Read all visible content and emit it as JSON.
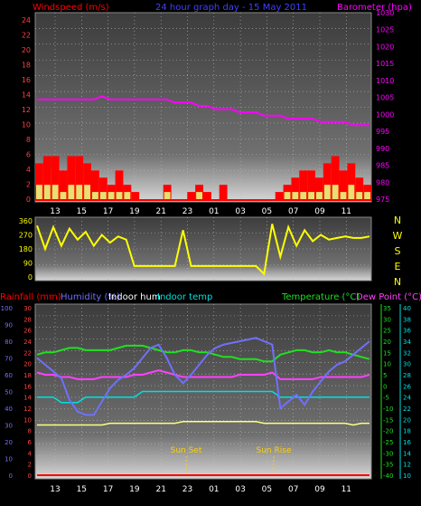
{
  "header": {
    "left_label": "Windspeed (m/s)",
    "center_label": "24 hour graph day - 15 May 2011",
    "right_label": "Barometer (hpa)"
  },
  "colors": {
    "background": "#000000",
    "plot_top": "#3c3c3c",
    "plot_bottom": "#d8d8d8",
    "wind": "#ff0000",
    "wind_avg": "#e8e070",
    "barometer": "#ff00ff",
    "direction": "#ffff00",
    "rain": "#ff0000",
    "humidity": "#7070ff",
    "indoor_hum": "#ffffff",
    "indoor_temp": "#00e0e0",
    "temperature": "#20e020",
    "dew_point": "#ff40ff",
    "sun_marker": "#ffd000",
    "time_axis": "#ffffff"
  },
  "time_ticks": [
    "13",
    "15",
    "17",
    "19",
    "21",
    "23",
    "01",
    "03",
    "05",
    "07",
    "09",
    "11"
  ],
  "chart_data": [
    {
      "type": "line",
      "title": "24 hour graph day - 15 May 2011",
      "ylabel_left": "Windspeed (m/s)",
      "ylabel_right": "Barometer (hpa)",
      "left_ticks": [
        "24",
        "22",
        "20",
        "18",
        "16",
        "14",
        "12",
        "10",
        "8",
        "6",
        "4",
        "2",
        "0"
      ],
      "right_ticks": [
        "1030",
        "1025",
        "1020",
        "1015",
        "1010",
        "1005",
        "1000",
        "995",
        "990",
        "985",
        "980",
        "975"
      ],
      "left_ylim": [
        0,
        25
      ],
      "right_ylim": [
        973,
        1031
      ],
      "wind_gust": [
        5,
        6,
        6,
        4,
        6,
        6,
        5,
        4,
        3,
        2,
        4,
        2,
        1,
        0,
        0,
        0,
        2,
        0,
        0,
        1,
        2,
        1,
        0,
        2,
        0,
        0,
        0,
        0,
        0,
        0,
        1,
        2,
        3,
        4,
        4,
        3,
        5,
        6,
        4,
        5,
        3,
        2
      ],
      "wind_avg": [
        2,
        2,
        2,
        1,
        2,
        2,
        2,
        1,
        1,
        1,
        1,
        1,
        0,
        0,
        0,
        0,
        1,
        0,
        0,
        0,
        1,
        0,
        0,
        0,
        0,
        0,
        0,
        0,
        0,
        0,
        0,
        1,
        1,
        1,
        1,
        1,
        2,
        2,
        1,
        2,
        1,
        1
      ],
      "barometer": [
        1004,
        1004,
        1004,
        1004,
        1004,
        1004,
        1004,
        1004,
        1005,
        1004,
        1004,
        1004,
        1004,
        1004,
        1004,
        1004,
        1004,
        1003,
        1003,
        1003,
        1002,
        1002,
        1001,
        1001,
        1001,
        1000,
        1000,
        1000,
        999,
        999,
        999,
        998,
        998,
        998,
        998,
        997,
        997,
        997,
        997,
        996,
        996,
        996
      ]
    },
    {
      "type": "line",
      "title": "",
      "ylabel_right": "N W S E N",
      "y_ticks": [
        "360",
        "270",
        "180",
        "90",
        "0"
      ],
      "ylim": [
        0,
        360
      ],
      "wind_direction": [
        330,
        180,
        320,
        200,
        310,
        240,
        290,
        200,
        270,
        220,
        260,
        240,
        70,
        70,
        70,
        70,
        70,
        70,
        300,
        70,
        70,
        70,
        70,
        70,
        70,
        70,
        70,
        70,
        20,
        340,
        130,
        320,
        200,
        300,
        230,
        270,
        240,
        250,
        260,
        250,
        250,
        260
      ]
    },
    {
      "type": "line",
      "left_series_labels": [
        "Rainfall (mm)",
        "Humidity (%)",
        "Indoor hum",
        "Indoor temp"
      ],
      "right_series_labels": [
        "Temperature (°C)",
        "Dew Point (°C)"
      ],
      "rain_ticks": [
        "30",
        "28",
        "26",
        "24",
        "22",
        "20",
        "18",
        "16",
        "14",
        "12",
        "10",
        "8",
        "6",
        "4",
        "2",
        "0"
      ],
      "humidity_ticks": [
        "100",
        "90",
        "80",
        "70",
        "60",
        "50",
        "40",
        "30",
        "20",
        "10",
        "0"
      ],
      "temp_ticks": [
        "35",
        "30",
        "25",
        "20",
        "15",
        "10",
        "5",
        "0",
        "-5",
        "-10",
        "-15",
        "-20",
        "-25",
        "-30",
        "-35",
        "-40"
      ],
      "indoor_ticks": [
        "40",
        "38",
        "36",
        "34",
        "32",
        "30",
        "28",
        "26",
        "24",
        "22",
        "20",
        "18",
        "16",
        "14",
        "12",
        "10"
      ],
      "humidity_ylim": [
        0,
        100
      ],
      "temp_ylim": [
        -40,
        35
      ],
      "annotations": [
        "Sun Set",
        "Sun Rise"
      ],
      "rainfall": [
        0,
        0,
        0,
        0,
        0,
        0,
        0,
        0,
        0,
        0,
        0,
        0,
        0,
        0,
        0,
        0,
        0,
        0,
        0,
        0,
        0,
        0,
        0,
        0,
        0,
        0,
        0,
        0,
        0,
        0,
        0,
        0,
        0,
        0,
        0,
        0,
        0,
        0,
        0,
        0,
        0,
        0
      ],
      "humidity": [
        70,
        66,
        62,
        58,
        45,
        38,
        36,
        36,
        44,
        52,
        57,
        60,
        64,
        70,
        76,
        78,
        70,
        60,
        55,
        60,
        66,
        72,
        76,
        78,
        79,
        80,
        81,
        82,
        80,
        78,
        40,
        44,
        48,
        42,
        50,
        56,
        62,
        66,
        68,
        72,
        76,
        80
      ],
      "indoor_hum": [
        30,
        30,
        30,
        30,
        30,
        30,
        30,
        30,
        30,
        31,
        31,
        31,
        31,
        31,
        31,
        31,
        31,
        31,
        32,
        32,
        32,
        32,
        32,
        32,
        32,
        32,
        32,
        32,
        31,
        31,
        31,
        31,
        31,
        31,
        31,
        31,
        31,
        31,
        31,
        30,
        31,
        31
      ],
      "indoor_temp": [
        24,
        24,
        24,
        23,
        23,
        23,
        24,
        24,
        24,
        24,
        24,
        24,
        24,
        25,
        25,
        25,
        25,
        25,
        25,
        25,
        25,
        25,
        25,
        25,
        25,
        25,
        25,
        25,
        25,
        25,
        24,
        24,
        24,
        24,
        24,
        24,
        24,
        24,
        24,
        24,
        24,
        24
      ],
      "temperature": [
        14,
        15,
        15,
        16,
        17,
        17,
        16,
        16,
        16,
        16,
        17,
        18,
        18,
        18,
        17,
        16,
        15,
        15,
        16,
        16,
        15,
        15,
        14,
        13,
        13,
        12,
        12,
        12,
        11,
        11,
        14,
        15,
        16,
        16,
        15,
        15,
        16,
        15,
        15,
        14,
        13,
        12
      ],
      "dew_point": [
        6,
        5,
        5,
        4,
        4,
        3,
        3,
        3,
        4,
        4,
        4,
        4,
        5,
        5,
        6,
        7,
        6,
        5,
        4,
        4,
        4,
        4,
        4,
        4,
        4,
        5,
        5,
        5,
        5,
        6,
        3,
        3,
        3,
        3,
        3,
        4,
        4,
        4,
        4,
        4,
        4,
        5
      ]
    }
  ]
}
